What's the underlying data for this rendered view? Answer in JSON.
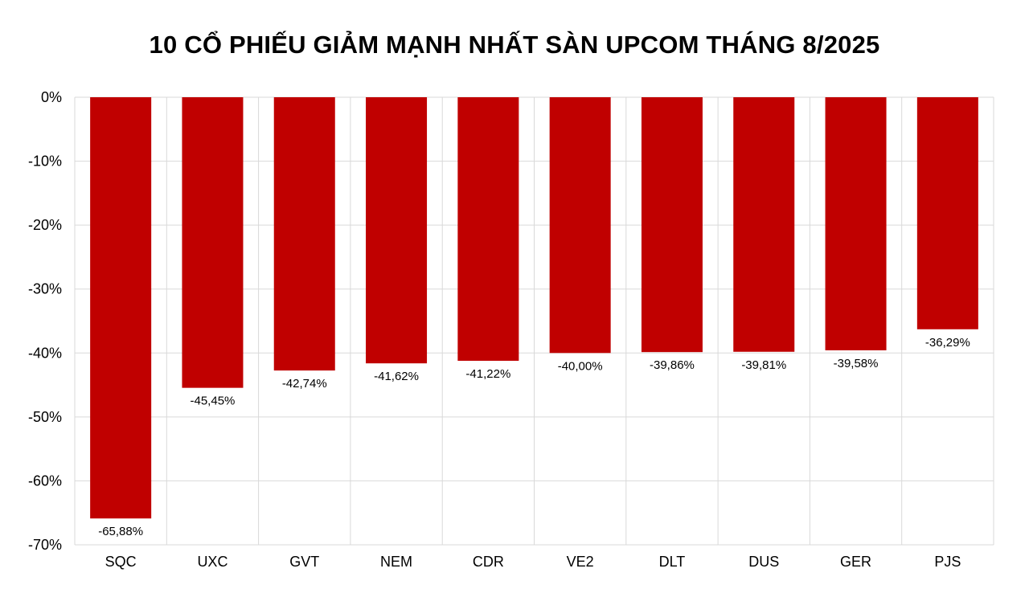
{
  "chart_data": {
    "type": "bar",
    "title": "10 CỔ PHIẾU GIẢM MẠNH NHẤT SÀN UPCOM THÁNG 8/2025",
    "xlabel": "",
    "ylabel": "",
    "categories": [
      "SQC",
      "UXC",
      "GVT",
      "NEM",
      "CDR",
      "VE2",
      "DLT",
      "DUS",
      "GER",
      "PJS"
    ],
    "values": [
      -65.88,
      -45.45,
      -42.74,
      -41.62,
      -41.22,
      -40.0,
      -39.86,
      -39.81,
      -39.58,
      -36.29
    ],
    "data_labels": [
      "-65,88%",
      "-45,45%",
      "-42,74%",
      "-41,62%",
      "-41,22%",
      "-40,00%",
      "-39,86%",
      "-39,81%",
      "-39,58%",
      "-36,29%"
    ],
    "ylim": [
      -70,
      0
    ],
    "yticks": [
      0,
      -10,
      -20,
      -30,
      -40,
      -50,
      -60,
      -70
    ],
    "ytick_labels": [
      "0%",
      "-10%",
      "-20%",
      "-30%",
      "-40%",
      "-50%",
      "-60%",
      "-70%"
    ],
    "grid": true,
    "legend": "none",
    "colors": {
      "bar": "#C00000",
      "grid": "#D9D9D9",
      "text": "#000000"
    }
  }
}
